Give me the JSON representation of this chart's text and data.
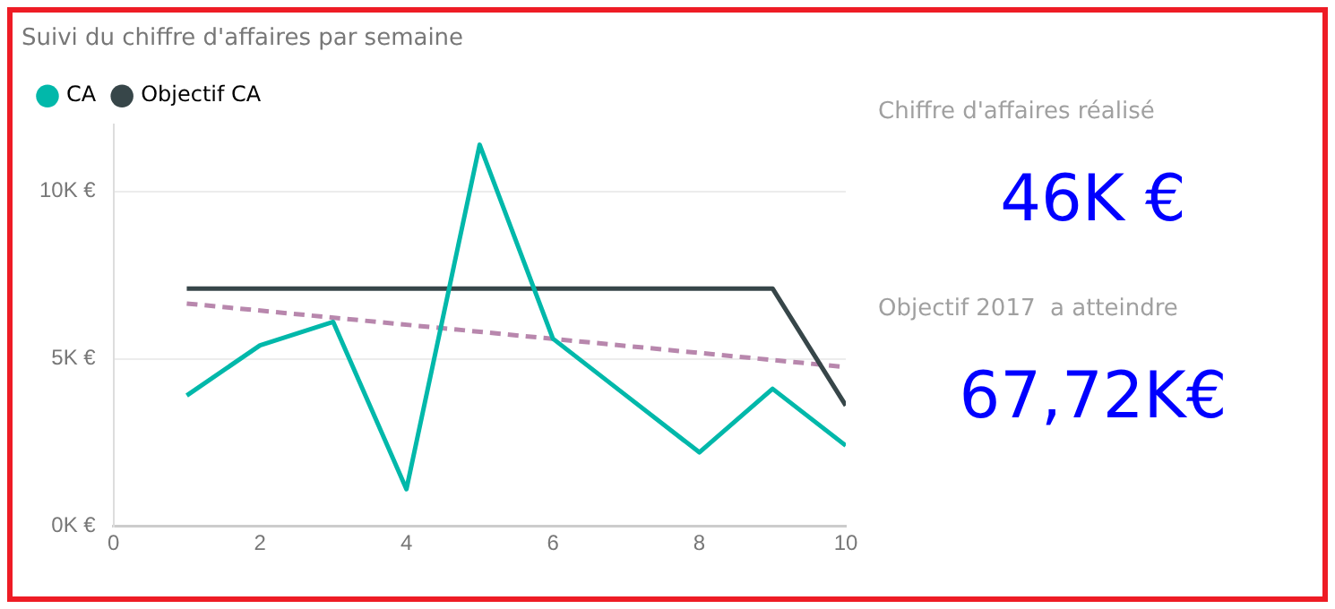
{
  "chart_data": [
    {
      "type": "line",
      "title": "Suivi du chiffre d'affaires par semaine",
      "x": [
        1,
        2,
        3,
        4,
        5,
        6,
        7,
        8,
        9,
        10
      ],
      "series": [
        {
          "name": "CA",
          "color": "#01b8aa",
          "values": [
            3900,
            5400,
            6100,
            1100,
            11400,
            5600,
            3900,
            2200,
            4100,
            2400
          ]
        },
        {
          "name": "Objectif CA",
          "color": "#374649",
          "values": [
            7100,
            7100,
            7100,
            7100,
            7100,
            7100,
            7100,
            7100,
            7100,
            3600
          ]
        },
        {
          "color": "#b887ad",
          "x": [
            1,
            10
          ],
          "values": [
            6650,
            4750
          ],
          "line_style": "dashed"
        }
      ],
      "xlim": [
        0,
        10
      ],
      "xticks": [
        0,
        2,
        4,
        6,
        8,
        10
      ],
      "ylim": [
        0,
        12000
      ],
      "yticks": [
        {
          "value": 0,
          "label": "0K €"
        },
        {
          "value": 5000,
          "label": "5K €"
        },
        {
          "value": 10000,
          "label": "10K €"
        }
      ],
      "grid": "y",
      "legend": "top left"
    },
    {
      "type": "other",
      "annotations": [
        "Chiffre d'affaires réalisé",
        "46K €",
        "Objectif 2017  a atteindre",
        "67,72K€"
      ]
    }
  ]
}
